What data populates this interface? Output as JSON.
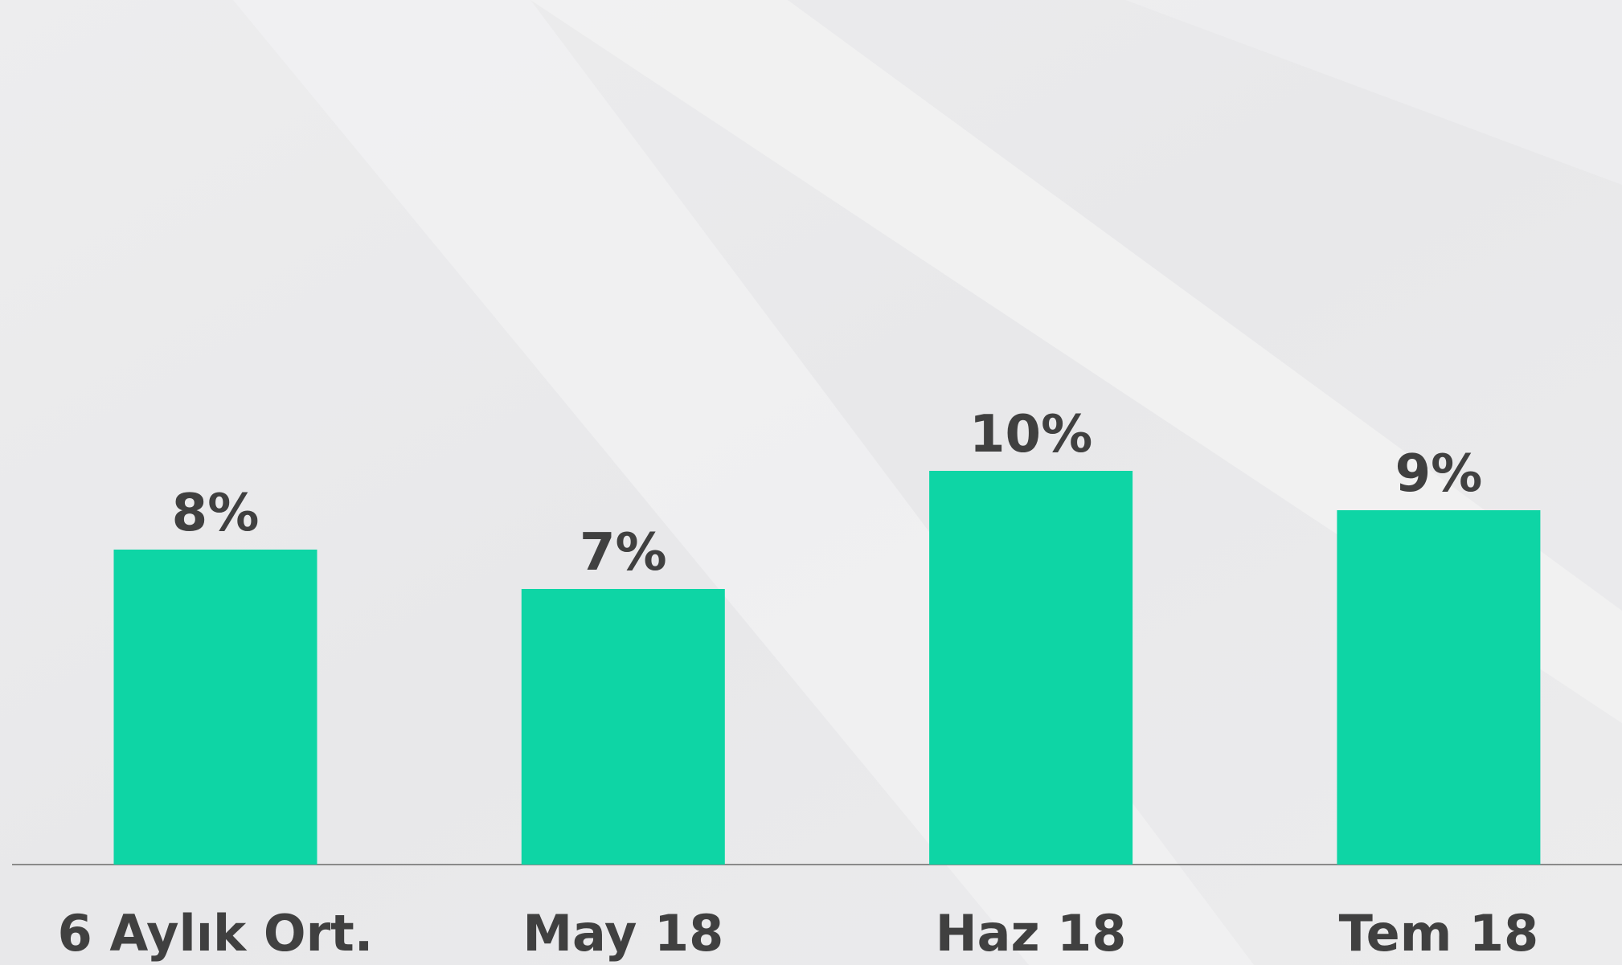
{
  "chart_data": {
    "type": "bar",
    "categories": [
      "6 Aylık Ort.",
      "May 18",
      "Haz 18",
      "Tem 18"
    ],
    "values": [
      8,
      7,
      10,
      9
    ],
    "value_labels": [
      "8%",
      "7%",
      "10%",
      "9%"
    ],
    "color": "#0ed5a5"
  }
}
